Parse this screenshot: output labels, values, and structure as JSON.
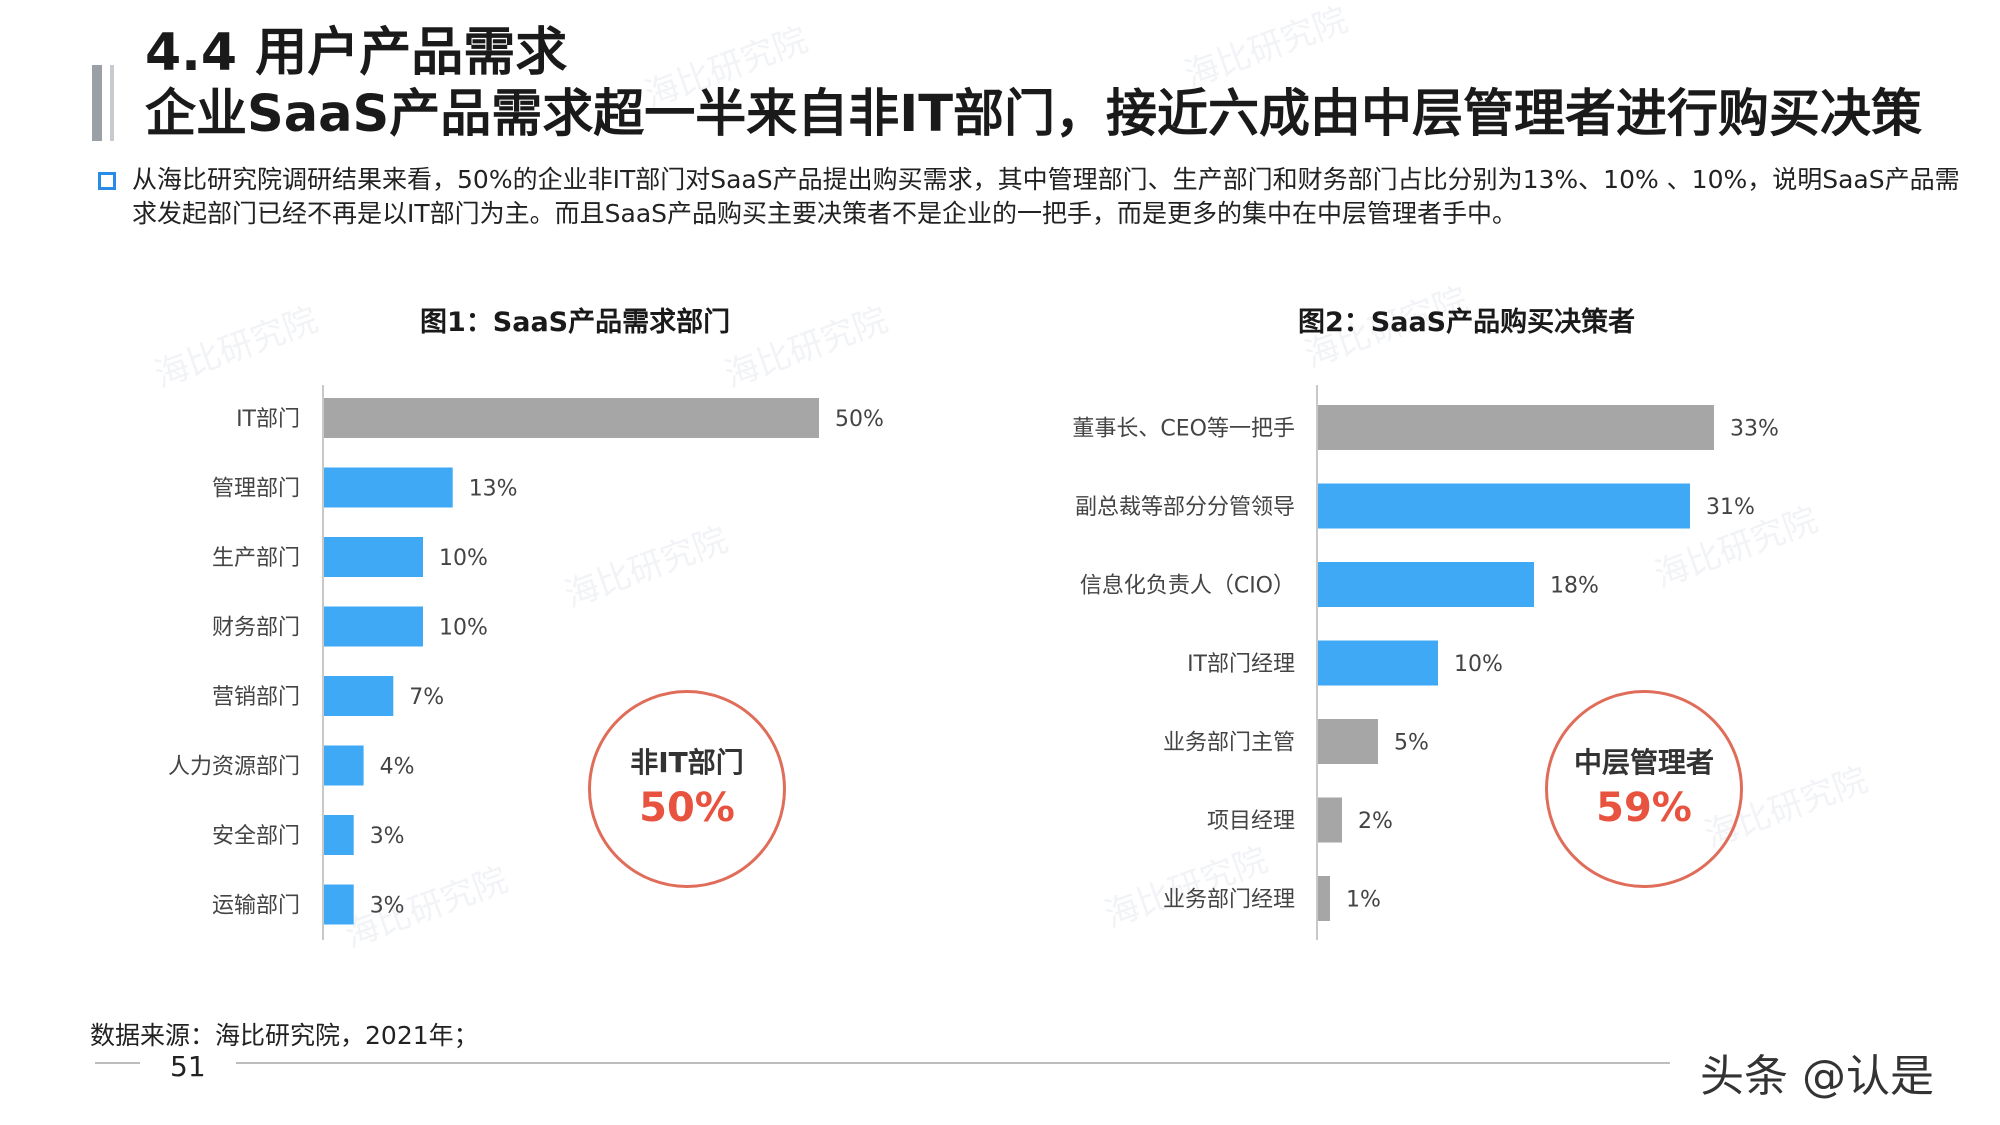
{
  "header": {
    "title": "4.4 用户产品需求",
    "subtitle": "企业SaaS产品需求超一半来自非IT部门，接近六成由中层管理者进行购买决策"
  },
  "summary": "从海比研究院调研结果来看，50%的企业非IT部门对SaaS产品提出购买需求，其中管理部门、生产部门和财务部门占比分别为13%、10% 、10%，说明SaaS产品需求发起部门已经不再是以IT部门为主。而且SaaS产品购买主要决策者不是企业的一把手，而是更多的集中在中层管理者手中。",
  "watermark": "海比研究院",
  "chart_data": [
    {
      "type": "bar",
      "orientation": "horizontal",
      "title": "图1：SaaS产品需求部门",
      "categories": [
        "IT部门",
        "管理部门",
        "生产部门",
        "财务部门",
        "营销部门",
        "人力资源部门",
        "安全部门",
        "运输部门"
      ],
      "values": [
        50,
        13,
        10,
        10,
        7,
        4,
        3,
        3
      ],
      "labels": [
        "50%",
        "13%",
        "10%",
        "10%",
        "7%",
        "4%",
        "3%",
        "3%"
      ],
      "colors": [
        "#a6a6a6",
        "#3fa9f5",
        "#3fa9f5",
        "#3fa9f5",
        "#3fa9f5",
        "#3fa9f5",
        "#3fa9f5",
        "#3fa9f5"
      ],
      "unit": "%",
      "callout": {
        "label": "非IT部门",
        "value": "50%"
      }
    },
    {
      "type": "bar",
      "orientation": "horizontal",
      "title": "图2：SaaS产品购买决策者",
      "categories": [
        "董事长、CEO等一把手",
        "副总裁等部分分管领导",
        "信息化负责人（CIO）",
        "IT部门经理",
        "业务部门主管",
        "项目经理",
        "业务部门经理"
      ],
      "values": [
        33,
        31,
        18,
        10,
        5,
        2,
        1
      ],
      "labels": [
        "33%",
        "31%",
        "18%",
        "10%",
        "5%",
        "2%",
        "1%"
      ],
      "colors": [
        "#a6a6a6",
        "#3fa9f5",
        "#3fa9f5",
        "#3fa9f5",
        "#a6a6a6",
        "#a6a6a6",
        "#a6a6a6"
      ],
      "unit": "%",
      "callout": {
        "label": "中层管理者",
        "value": "59%"
      }
    }
  ],
  "footer": {
    "source": "数据来源：海比研究院，2021年；",
    "page": "51",
    "brand": "头条 @认是"
  }
}
